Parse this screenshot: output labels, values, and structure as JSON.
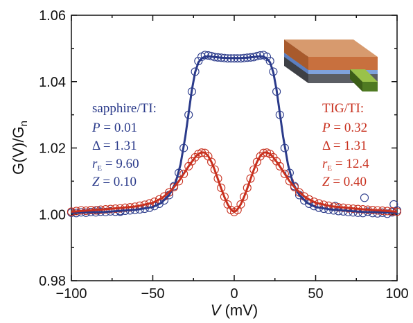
{
  "chart_data": {
    "type": "scatter",
    "xlabel": {
      "var": "V",
      "unit": " (mV)"
    },
    "ylabel": {
      "main": "G(V)/G",
      "sub": "n"
    },
    "xlim": [
      -100,
      100
    ],
    "ylim": [
      0.98,
      1.06
    ],
    "xticks": [
      "−100",
      "−50",
      "0",
      "50",
      "100"
    ],
    "xtick_values": [
      -100,
      -50,
      0,
      50,
      100
    ],
    "yticks": [
      "0.98",
      "1.00",
      "1.02",
      "1.04",
      "1.06"
    ],
    "ytick_values": [
      0.98,
      1.0,
      1.02,
      1.04,
      1.06
    ],
    "series": [
      {
        "color": "#2a3a8a",
        "marker": "open-circle",
        "fit_params": {
          "P": 0.01,
          "Delta": 1.31,
          "rE": 9.6,
          "Z": 0.1
        },
        "points": [
          [
            -100,
            1.0005
          ],
          [
            -97,
            1.0004
          ],
          [
            -94,
            1.0006
          ],
          [
            -91,
            1.0005
          ],
          [
            -88,
            1.0007
          ],
          [
            -85,
            1.0006
          ],
          [
            -82,
            1.0008
          ],
          [
            -79,
            1.0007
          ],
          [
            -76,
            1.0009
          ],
          [
            -73,
            1.0008
          ],
          [
            -70,
            1.001
          ],
          [
            -67,
            1.0011
          ],
          [
            -64,
            1.0012
          ],
          [
            -61,
            1.0013
          ],
          [
            -58,
            1.0015
          ],
          [
            -55,
            1.0017
          ],
          [
            -52,
            1.002
          ],
          [
            -49,
            1.0025
          ],
          [
            -46,
            1.0032
          ],
          [
            -43,
            1.0042
          ],
          [
            -40,
            1.0058
          ],
          [
            -37,
            1.0085
          ],
          [
            -34,
            1.0125
          ],
          [
            -31,
            1.02
          ],
          [
            -28,
            1.03
          ],
          [
            -26,
            1.037
          ],
          [
            -24,
            1.043
          ],
          [
            -22,
            1.0462
          ],
          [
            -20,
            1.0475
          ],
          [
            -18,
            1.048
          ],
          [
            -16,
            1.0479
          ],
          [
            -14,
            1.0477
          ],
          [
            -12,
            1.0474
          ],
          [
            -10,
            1.0473
          ],
          [
            -8,
            1.0472
          ],
          [
            -6,
            1.0471
          ],
          [
            -4,
            1.047
          ],
          [
            -2,
            1.047
          ],
          [
            0,
            1.047
          ],
          [
            2,
            1.047
          ],
          [
            4,
            1.047
          ],
          [
            6,
            1.0471
          ],
          [
            8,
            1.0472
          ],
          [
            10,
            1.0473
          ],
          [
            12,
            1.0474
          ],
          [
            14,
            1.0477
          ],
          [
            16,
            1.0479
          ],
          [
            18,
            1.048
          ],
          [
            20,
            1.0475
          ],
          [
            22,
            1.0462
          ],
          [
            24,
            1.043
          ],
          [
            26,
            1.037
          ],
          [
            28,
            1.03
          ],
          [
            31,
            1.02
          ],
          [
            34,
            1.0125
          ],
          [
            37,
            1.0085
          ],
          [
            40,
            1.0058
          ],
          [
            43,
            1.0042
          ],
          [
            46,
            1.0032
          ],
          [
            49,
            1.0025
          ],
          [
            52,
            1.002
          ],
          [
            55,
            1.0017
          ],
          [
            58,
            1.0014
          ],
          [
            61,
            1.0012
          ],
          [
            64,
            1.001
          ],
          [
            67,
            1.0009
          ],
          [
            70,
            1.0007
          ],
          [
            73,
            1.0006
          ],
          [
            76,
            1.0005
          ],
          [
            79,
            1.0004
          ],
          [
            82,
            1.0008
          ],
          [
            85,
            1.0004
          ],
          [
            88,
            1.0003
          ],
          [
            91,
            1.0005
          ],
          [
            94,
            1.0002
          ],
          [
            97,
            1.0006
          ],
          [
            100,
            1.0012
          ],
          [
            80,
            1.005
          ],
          [
            98,
            1.003
          ],
          [
            62,
            1.0025
          ],
          [
            -84,
            1.0012
          ],
          [
            -70,
            1.0008
          ]
        ],
        "fit": [
          [
            -100,
            1.0005
          ],
          [
            -80,
            1.0007
          ],
          [
            -60,
            1.0014
          ],
          [
            -50,
            1.0022
          ],
          [
            -45,
            1.0034
          ],
          [
            -40,
            1.0058
          ],
          [
            -36,
            1.0095
          ],
          [
            -33,
            1.015
          ],
          [
            -30,
            1.0235
          ],
          [
            -28,
            1.0305
          ],
          [
            -26,
            1.0375
          ],
          [
            -24,
            1.0428
          ],
          [
            -22,
            1.0458
          ],
          [
            -20,
            1.047
          ],
          [
            -18,
            1.0475
          ],
          [
            -16,
            1.0476
          ],
          [
            -12,
            1.0474
          ],
          [
            -8,
            1.0472
          ],
          [
            -4,
            1.0471
          ],
          [
            0,
            1.0471
          ],
          [
            4,
            1.0471
          ],
          [
            8,
            1.0472
          ],
          [
            12,
            1.0474
          ],
          [
            16,
            1.0476
          ],
          [
            18,
            1.0475
          ],
          [
            20,
            1.047
          ],
          [
            22,
            1.0458
          ],
          [
            24,
            1.0428
          ],
          [
            26,
            1.0375
          ],
          [
            28,
            1.0305
          ],
          [
            30,
            1.0235
          ],
          [
            33,
            1.015
          ],
          [
            36,
            1.0095
          ],
          [
            40,
            1.0058
          ],
          [
            45,
            1.0034
          ],
          [
            50,
            1.0022
          ],
          [
            60,
            1.0014
          ],
          [
            80,
            1.0007
          ],
          [
            100,
            1.0005
          ]
        ]
      },
      {
        "color": "#c8301e",
        "marker": "open-circle",
        "fit_params": {
          "P": 0.32,
          "Delta": 1.31,
          "rE": 12.4,
          "Z": 0.4
        },
        "points": [
          [
            -100,
            1.0008
          ],
          [
            -97,
            1.001
          ],
          [
            -94,
            1.0012
          ],
          [
            -91,
            1.0011
          ],
          [
            -88,
            1.0013
          ],
          [
            -85,
            1.0012
          ],
          [
            -82,
            1.0014
          ],
          [
            -79,
            1.0015
          ],
          [
            -76,
            1.0016
          ],
          [
            -73,
            1.0017
          ],
          [
            -70,
            1.0018
          ],
          [
            -67,
            1.002
          ],
          [
            -64,
            1.0021
          ],
          [
            -61,
            1.0023
          ],
          [
            -58,
            1.0026
          ],
          [
            -55,
            1.0029
          ],
          [
            -52,
            1.0033
          ],
          [
            -49,
            1.0038
          ],
          [
            -46,
            1.0045
          ],
          [
            -43,
            1.0054
          ],
          [
            -40,
            1.0066
          ],
          [
            -37,
            1.0082
          ],
          [
            -34,
            1.01
          ],
          [
            -31,
            1.0122
          ],
          [
            -28,
            1.0145
          ],
          [
            -26,
            1.016
          ],
          [
            -24,
            1.0172
          ],
          [
            -22,
            1.0182
          ],
          [
            -20,
            1.0186
          ],
          [
            -18,
            1.0185
          ],
          [
            -16,
            1.0175
          ],
          [
            -14,
            1.0158
          ],
          [
            -12,
            1.0135
          ],
          [
            -10,
            1.0108
          ],
          [
            -8,
            1.008
          ],
          [
            -6,
            1.0053
          ],
          [
            -4,
            1.003
          ],
          [
            -2,
            1.0013
          ],
          [
            0,
            1.0007
          ],
          [
            2,
            1.0013
          ],
          [
            4,
            1.003
          ],
          [
            6,
            1.0053
          ],
          [
            8,
            1.008
          ],
          [
            10,
            1.0108
          ],
          [
            12,
            1.0135
          ],
          [
            14,
            1.0158
          ],
          [
            16,
            1.0175
          ],
          [
            18,
            1.0185
          ],
          [
            20,
            1.0186
          ],
          [
            22,
            1.0182
          ],
          [
            24,
            1.0172
          ],
          [
            26,
            1.016
          ],
          [
            28,
            1.0145
          ],
          [
            31,
            1.0122
          ],
          [
            34,
            1.01
          ],
          [
            37,
            1.0082
          ],
          [
            40,
            1.0066
          ],
          [
            43,
            1.0054
          ],
          [
            46,
            1.0045
          ],
          [
            49,
            1.0038
          ],
          [
            52,
            1.0033
          ],
          [
            55,
            1.0029
          ],
          [
            58,
            1.0026
          ],
          [
            61,
            1.0023
          ],
          [
            64,
            1.0021
          ],
          [
            67,
            1.002
          ],
          [
            70,
            1.0018
          ],
          [
            73,
            1.0017
          ],
          [
            76,
            1.0016
          ],
          [
            79,
            1.0015
          ],
          [
            82,
            1.0014
          ],
          [
            85,
            1.0013
          ],
          [
            88,
            1.0012
          ],
          [
            91,
            1.0011
          ],
          [
            94,
            1.001
          ],
          [
            97,
            1.0009
          ],
          [
            100,
            1.0008
          ]
        ],
        "fit": [
          [
            -100,
            1.0008
          ],
          [
            -80,
            1.0015
          ],
          [
            -60,
            1.0024
          ],
          [
            -50,
            1.0035
          ],
          [
            -44,
            1.005
          ],
          [
            -38,
            1.0076
          ],
          [
            -34,
            1.01
          ],
          [
            -30,
            1.013
          ],
          [
            -27,
            1.0152
          ],
          [
            -24,
            1.0172
          ],
          [
            -22,
            1.0182
          ],
          [
            -20,
            1.0187
          ],
          [
            -18,
            1.0186
          ],
          [
            -16,
            1.0176
          ],
          [
            -14,
            1.0158
          ],
          [
            -12,
            1.0134
          ],
          [
            -10,
            1.0106
          ],
          [
            -8,
            1.0078
          ],
          [
            -6,
            1.0052
          ],
          [
            -4,
            1.003
          ],
          [
            -2,
            1.0015
          ],
          [
            -1,
            1.001
          ],
          [
            0,
            1.0008
          ],
          [
            1,
            1.001
          ],
          [
            2,
            1.0015
          ],
          [
            4,
            1.003
          ],
          [
            6,
            1.0052
          ],
          [
            8,
            1.0078
          ],
          [
            10,
            1.0106
          ],
          [
            12,
            1.0134
          ],
          [
            14,
            1.0158
          ],
          [
            16,
            1.0176
          ],
          [
            18,
            1.0186
          ],
          [
            20,
            1.0187
          ],
          [
            22,
            1.0182
          ],
          [
            24,
            1.0172
          ],
          [
            27,
            1.0152
          ],
          [
            30,
            1.013
          ],
          [
            34,
            1.01
          ],
          [
            38,
            1.0076
          ],
          [
            44,
            1.005
          ],
          [
            50,
            1.0035
          ],
          [
            60,
            1.0024
          ],
          [
            80,
            1.0015
          ],
          [
            100,
            1.0008
          ]
        ]
      }
    ]
  },
  "legend_blue": {
    "title": "sapphire/TI:",
    "p_label": "P",
    "p_value": " = 0.01",
    "d_label": "Δ",
    "d_value": " = 1.31",
    "r_label": "r",
    "r_sub": "E",
    "r_value": " = 9.60",
    "z_label": "Z",
    "z_value": " = 0.10"
  },
  "legend_red": {
    "title": "TIG/TI:",
    "p_label": "P",
    "p_value": " = 0.32",
    "d_label": "Δ",
    "d_value": " = 1.31",
    "r_label": "r",
    "r_sub": "E",
    "r_value": " = 12.4",
    "z_label": "Z",
    "z_value": " = 0.40"
  },
  "colors": {
    "blue": "#2a3a8a",
    "red": "#c8301e",
    "axis": "#111111"
  }
}
